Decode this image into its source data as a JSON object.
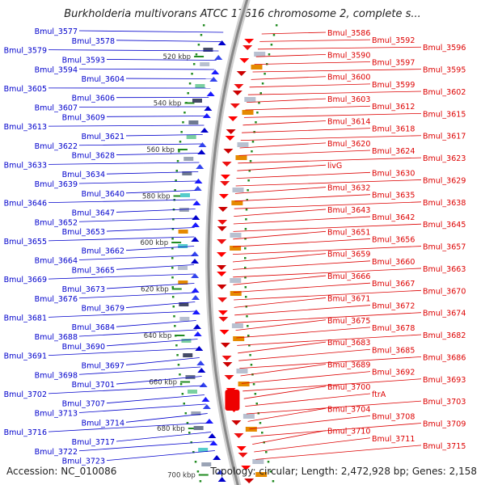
{
  "title": "Burkholderia multivorans ATCC 17616 chromosome 2, complete s...",
  "footer": {
    "accession": "Accession: NC_010086",
    "topology": "Topology: circular; Length: 2,472,928 bp; Genes: 2,158"
  },
  "colors": {
    "left_genes": "#0000cc",
    "right_genes": "#dd0000",
    "backbone": "#888888",
    "scale_dots": "#228b22"
  },
  "scale_labels": [
    {
      "text": "520 kbp",
      "kbp": 520
    },
    {
      "text": "540 kbp",
      "kbp": 540
    },
    {
      "text": "560 kbp",
      "kbp": 560
    },
    {
      "text": "580 kbp",
      "kbp": 580
    },
    {
      "text": "600 kbp",
      "kbp": 600
    },
    {
      "text": "620 kbp",
      "kbp": 620
    },
    {
      "text": "640 kbp",
      "kbp": 640
    },
    {
      "text": "660 kbp",
      "kbp": 660
    },
    {
      "text": "680 kbp",
      "kbp": 680
    },
    {
      "text": "700 kbp",
      "kbp": 700
    }
  ],
  "left_labels": [
    "Bmul_3577",
    "Bmul_3578",
    "Bmul_3579",
    "Bmul_3593",
    "Bmul_3594",
    "Bmul_3604",
    "Bmul_3605",
    "Bmul_3606",
    "Bmul_3607",
    "Bmul_3609",
    "Bmul_3613",
    "Bmul_3621",
    "Bmul_3622",
    "Bmul_3628",
    "Bmul_3633",
    "Bmul_3634",
    "Bmul_3639",
    "Bmul_3640",
    "Bmul_3646",
    "Bmul_3647",
    "Bmul_3652",
    "Bmul_3653",
    "Bmul_3655",
    "Bmul_3662",
    "Bmul_3664",
    "Bmul_3665",
    "Bmul_3669",
    "Bmul_3673",
    "Bmul_3676",
    "Bmul_3679",
    "Bmul_3681",
    "Bmul_3684",
    "Bmul_3688",
    "Bmul_3690",
    "Bmul_3691",
    "Bmul_3697",
    "Bmul_3698",
    "Bmul_3701",
    "Bmul_3702",
    "Bmul_3707",
    "Bmul_3713",
    "Bmul_3714",
    "Bmul_3716",
    "Bmul_3717",
    "Bmul_3722",
    "Bmul_3723"
  ],
  "right_labels": [
    "Bmul_3586",
    "Bmul_3592",
    "Bmul_3596",
    "Bmul_3590",
    "Bmul_3597",
    "Bmul_3595",
    "Bmul_3600",
    "Bmul_3599",
    "Bmul_3602",
    "Bmul_3603",
    "Bmul_3612",
    "Bmul_3615",
    "Bmul_3614",
    "Bmul_3618",
    "Bmul_3617",
    "Bmul_3620",
    "Bmul_3624",
    "Bmul_3623",
    "livG",
    "Bmul_3630",
    "Bmul_3629",
    "Bmul_3632",
    "Bmul_3635",
    "Bmul_3638",
    "Bmul_3643",
    "Bmul_3642",
    "Bmul_3645",
    "Bmul_3651",
    "Bmul_3656",
    "Bmul_3657",
    "Bmul_3659",
    "Bmul_3660",
    "Bmul_3663",
    "Bmul_3666",
    "Bmul_3667",
    "Bmul_3670",
    "Bmul_3671",
    "Bmul_3672",
    "Bmul_3674",
    "Bmul_3675",
    "Bmul_3678",
    "Bmul_3682",
    "Bmul_3683",
    "Bmul_3685",
    "Bmul_3686",
    "Bmul_3689",
    "Bmul_3692",
    "Bmul_3693",
    "Bmul_3700",
    "ftrA",
    "Bmul_3703",
    "Bmul_3704",
    "Bmul_3708",
    "Bmul_3709",
    "Bmul_3710",
    "Bmul_3711",
    "Bmul_3715"
  ]
}
